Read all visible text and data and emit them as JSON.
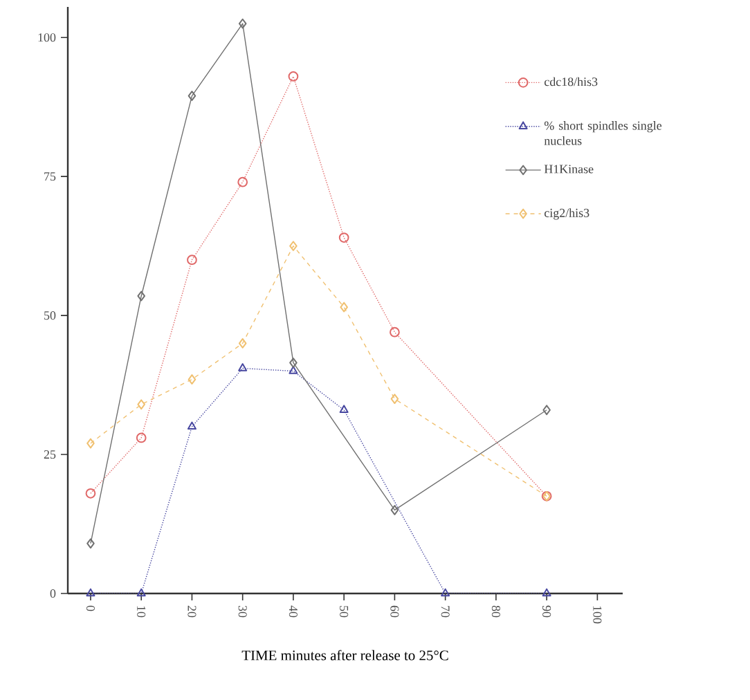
{
  "chart_data": {
    "type": "line",
    "xlabel": "TIME minutes after release to 25°C",
    "xlim": [
      -4.5,
      105
    ],
    "ylim": [
      0,
      105.5
    ],
    "xticks": [
      0,
      10,
      20,
      30,
      40,
      50,
      60,
      70,
      80,
      90,
      100
    ],
    "yticks": [
      0,
      25,
      50,
      75,
      100
    ],
    "grid": false,
    "legend": "top right",
    "series": [
      {
        "name": "cdc18/his3",
        "color": "#e06868",
        "marker": "circle",
        "line_style": "dotted",
        "x": [
          0,
          10,
          20,
          30,
          40,
          50,
          60,
          90
        ],
        "values": [
          18,
          28,
          60,
          74,
          93,
          64,
          47,
          17.5
        ]
      },
      {
        "name": "% short spindles single nucleus",
        "color": "#4848a0",
        "marker": "triangle",
        "line_style": "dotted",
        "x": [
          0,
          10,
          20,
          30,
          40,
          50,
          70,
          90
        ],
        "values": [
          0,
          0,
          30,
          40.5,
          40,
          33,
          0,
          0
        ]
      },
      {
        "name": "H1Kinase",
        "color": "#707070",
        "marker": "diamond",
        "line_style": "solid",
        "x": [
          0,
          10,
          20,
          30,
          40,
          60,
          90
        ],
        "values": [
          9,
          53.5,
          89.5,
          102.5,
          41.5,
          15,
          33
        ]
      },
      {
        "name": "cig2/his3",
        "color": "#f0c070",
        "marker": "diamond",
        "line_style": "dashed",
        "x": [
          0,
          10,
          20,
          30,
          40,
          50,
          60,
          90
        ],
        "values": [
          27,
          34,
          38.5,
          45,
          62.5,
          51.5,
          35,
          17.5
        ]
      }
    ]
  }
}
